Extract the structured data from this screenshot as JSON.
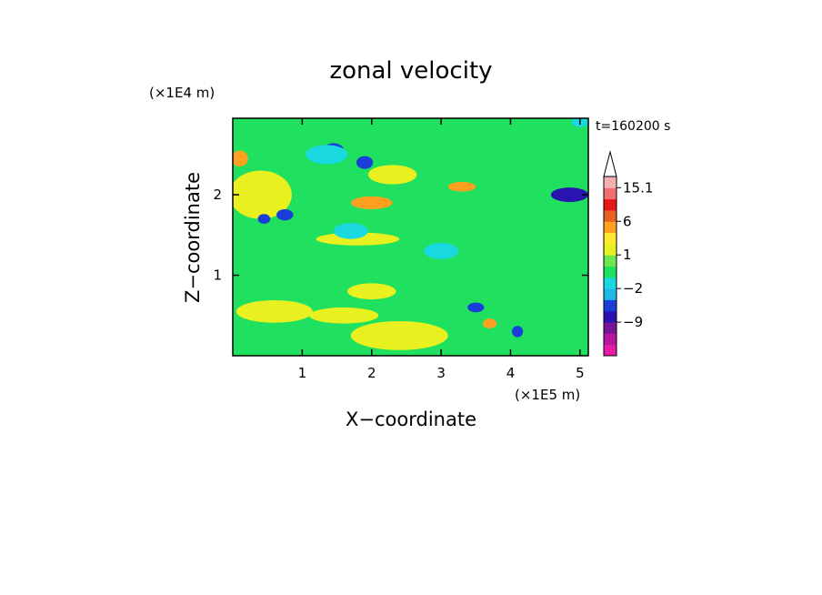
{
  "chart_data": {
    "type": "heatmap",
    "title": "zonal velocity",
    "xlabel": "X−coordinate",
    "ylabel": "Z−coordinate",
    "x_unit": "(×1E5 m)",
    "y_unit": "(×1E4 m)",
    "time_label": "t=160200 s",
    "xlim": [
      0,
      5.12
    ],
    "ylim": [
      0,
      2.95
    ],
    "x_ticks": [
      1,
      2,
      3,
      4,
      5
    ],
    "y_ticks": [
      1,
      2
    ],
    "colorbar": {
      "levels": [
        -15,
        -12,
        -9,
        -6,
        -3,
        -2,
        -1,
        0,
        1,
        2,
        3,
        6,
        9,
        12,
        15.1
      ],
      "labels": [
        "15.1",
        "6",
        "1",
        "−2",
        "−9"
      ],
      "label_values": [
        15.1,
        6,
        1,
        -2,
        -9
      ],
      "colors": [
        "#e81ca8",
        "#b8169f",
        "#7a1496",
        "#2a14b0",
        "#1a3ed8",
        "#1eb8e8",
        "#1ad8e0",
        "#20e060",
        "#6ce84c",
        "#e8f020",
        "#ffe830",
        "#ffa020",
        "#e86020",
        "#e81818",
        "#f07070",
        "#f4b0b0"
      ],
      "extend": "max"
    },
    "background_level": "#20e060",
    "features": [
      {
        "x": 2.3,
        "z": 2.25,
        "rx": 0.35,
        "rz": 0.12,
        "c": "#e8f020"
      },
      {
        "x": 2.4,
        "z": 0.25,
        "rx": 0.7,
        "rz": 0.18,
        "c": "#e8f020"
      },
      {
        "x": 0.6,
        "z": 0.55,
        "rx": 0.55,
        "rz": 0.14,
        "c": "#e8f020"
      },
      {
        "x": 1.6,
        "z": 0.5,
        "rx": 0.5,
        "rz": 0.1,
        "c": "#e8f020"
      },
      {
        "x": 2.0,
        "z": 0.8,
        "rx": 0.35,
        "rz": 0.1,
        "c": "#e8f020"
      },
      {
        "x": 0.4,
        "z": 2.0,
        "rx": 0.45,
        "rz": 0.3,
        "c": "#e8f020"
      },
      {
        "x": 1.8,
        "z": 1.45,
        "rx": 0.6,
        "rz": 0.08,
        "c": "#e8f020"
      },
      {
        "x": 2.0,
        "z": 1.9,
        "rx": 0.3,
        "rz": 0.08,
        "c": "#ffa020"
      },
      {
        "x": 0.1,
        "z": 2.45,
        "rx": 0.12,
        "rz": 0.1,
        "c": "#ffa020"
      },
      {
        "x": 1.45,
        "z": 2.55,
        "rx": 0.15,
        "rz": 0.09,
        "c": "#1a3ed8"
      },
      {
        "x": 1.9,
        "z": 2.4,
        "rx": 0.12,
        "rz": 0.08,
        "c": "#1a3ed8"
      },
      {
        "x": 0.75,
        "z": 1.75,
        "rx": 0.12,
        "rz": 0.07,
        "c": "#1a3ed8"
      },
      {
        "x": 0.45,
        "z": 1.7,
        "rx": 0.09,
        "rz": 0.06,
        "c": "#1a3ed8"
      },
      {
        "x": 4.85,
        "z": 2.0,
        "rx": 0.27,
        "rz": 0.09,
        "c": "#2a14b0"
      },
      {
        "x": 3.5,
        "z": 0.6,
        "rx": 0.12,
        "rz": 0.06,
        "c": "#1a3ed8"
      },
      {
        "x": 4.1,
        "z": 0.3,
        "rx": 0.08,
        "rz": 0.07,
        "c": "#1a3ed8"
      },
      {
        "x": 1.7,
        "z": 1.55,
        "rx": 0.25,
        "rz": 0.1,
        "c": "#1ad8e0"
      },
      {
        "x": 1.35,
        "z": 2.5,
        "rx": 0.3,
        "rz": 0.12,
        "c": "#1ad8e0"
      },
      {
        "x": 3.0,
        "z": 1.3,
        "rx": 0.25,
        "rz": 0.1,
        "c": "#1ad8e0"
      },
      {
        "x": 5.0,
        "z": 2.9,
        "rx": 0.12,
        "rz": 0.06,
        "c": "#1ad8e0"
      },
      {
        "x": 3.7,
        "z": 0.4,
        "rx": 0.1,
        "rz": 0.06,
        "c": "#ffa020"
      },
      {
        "x": 3.3,
        "z": 2.1,
        "rx": 0.2,
        "rz": 0.06,
        "c": "#ffa020"
      }
    ]
  }
}
